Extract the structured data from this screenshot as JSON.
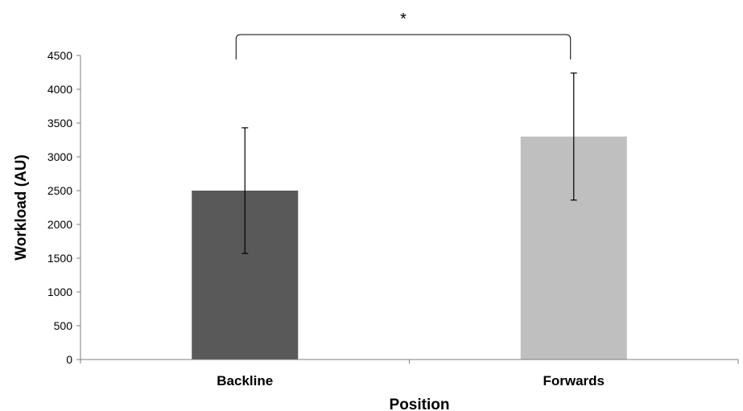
{
  "chart_data": {
    "type": "bar",
    "categories": [
      "Backline",
      "Forwards"
    ],
    "values": [
      2500,
      3300
    ],
    "error_bars": [
      930,
      940
    ],
    "colors": [
      "#595959",
      "#bfbfbf"
    ],
    "xlabel": "Position",
    "ylabel": "Workload (AU)",
    "ylim": [
      0,
      4500
    ],
    "yticks": [
      0,
      500,
      1000,
      1500,
      2000,
      2500,
      3000,
      3500,
      4000,
      4500
    ],
    "grid": false,
    "legend": "none",
    "annotation": {
      "text": "*",
      "between": [
        "Backline",
        "Forwards"
      ]
    }
  }
}
